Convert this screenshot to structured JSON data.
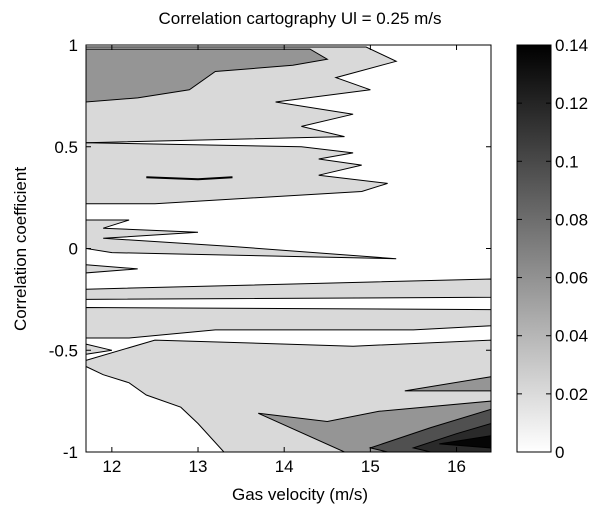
{
  "chart_data": {
    "type": "heatmap",
    "subtype": "filled-contour",
    "title": "Correlation cartography Ul = 0.25 m/s",
    "xlabel": "Gas velocity (m/s)",
    "ylabel": "Correlation coefficient",
    "xlim": [
      11.7,
      16.4
    ],
    "ylim": [
      -1,
      1
    ],
    "x_ticks": [
      "12",
      "13",
      "14",
      "15",
      "16"
    ],
    "y_ticks": [
      "1",
      "0.5",
      "0",
      "-0.5",
      "-1"
    ],
    "colorbar": {
      "ticks": [
        "0.14",
        "0.12",
        "0.1",
        "0.08",
        "0.06",
        "0.04",
        "0.02",
        "0"
      ],
      "range": [
        0,
        0.14
      ],
      "colormap": "gray-reversed"
    },
    "contour_levels": [
      0,
      0.02,
      0.04,
      0.06,
      0.08,
      0.1,
      0.12,
      0.14
    ],
    "regions": [
      {
        "level": 0.02,
        "color": "#d9d9d9",
        "polygon": [
          [
            11.7,
            0.99
          ],
          [
            14.95,
            0.99
          ],
          [
            15.3,
            0.92
          ],
          [
            14.6,
            0.84
          ],
          [
            15.0,
            0.78
          ],
          [
            13.9,
            0.72
          ],
          [
            14.8,
            0.66
          ],
          [
            14.2,
            0.6
          ],
          [
            14.7,
            0.55
          ],
          [
            11.7,
            0.52
          ]
        ]
      },
      {
        "level": 0.02,
        "color": "#d9d9d9",
        "polygon": [
          [
            11.7,
            0.52
          ],
          [
            14.2,
            0.5
          ],
          [
            14.8,
            0.47
          ],
          [
            14.4,
            0.44
          ],
          [
            14.9,
            0.41
          ],
          [
            14.4,
            0.36
          ],
          [
            15.2,
            0.32
          ],
          [
            14.9,
            0.28
          ],
          [
            12.5,
            0.22
          ],
          [
            11.7,
            0.22
          ]
        ]
      },
      {
        "level": 0.02,
        "color": "#d9d9d9",
        "polygon": [
          [
            11.7,
            0.14
          ],
          [
            12.2,
            0.14
          ],
          [
            11.9,
            0.1
          ],
          [
            13.0,
            0.08
          ],
          [
            11.9,
            0.05
          ],
          [
            13.4,
            0.01
          ],
          [
            15.3,
            -0.05
          ],
          [
            12.0,
            -0.02
          ],
          [
            11.7,
            0.0
          ]
        ]
      },
      {
        "level": 0.02,
        "color": "#d9d9d9",
        "polygon": [
          [
            11.7,
            -0.08
          ],
          [
            12.3,
            -0.1
          ],
          [
            11.7,
            -0.12
          ]
        ]
      },
      {
        "level": 0.02,
        "color": "#d9d9d9",
        "polygon": [
          [
            11.7,
            -0.2
          ],
          [
            16.4,
            -0.15
          ],
          [
            16.4,
            -0.24
          ],
          [
            11.7,
            -0.25
          ]
        ]
      },
      {
        "level": 0.02,
        "color": "#d9d9d9",
        "polygon": [
          [
            11.7,
            -0.29
          ],
          [
            16.4,
            -0.3
          ],
          [
            16.4,
            -0.38
          ],
          [
            15.5,
            -0.4
          ],
          [
            13.2,
            -0.4
          ],
          [
            12.2,
            -0.44
          ],
          [
            11.7,
            -0.44
          ]
        ]
      },
      {
        "level": 0.02,
        "color": "#d9d9d9",
        "polygon": [
          [
            11.7,
            -0.55
          ],
          [
            12.5,
            -0.45
          ],
          [
            14.8,
            -0.48
          ],
          [
            16.4,
            -0.45
          ],
          [
            16.4,
            -1.0
          ],
          [
            13.3,
            -1.0
          ],
          [
            13.0,
            -0.86
          ],
          [
            12.8,
            -0.78
          ],
          [
            12.4,
            -0.72
          ],
          [
            12.2,
            -0.66
          ],
          [
            11.9,
            -0.62
          ],
          [
            11.7,
            -0.58
          ]
        ]
      },
      {
        "level": 0.02,
        "color": "#d9d9d9",
        "polygon": [
          [
            11.7,
            -0.47
          ],
          [
            12.0,
            -0.5
          ],
          [
            11.7,
            -0.52
          ]
        ]
      },
      {
        "level": 0.04,
        "color": "#959595",
        "polygon": [
          [
            11.7,
            0.98
          ],
          [
            14.3,
            0.98
          ],
          [
            14.5,
            0.93
          ],
          [
            14.1,
            0.9
          ],
          [
            13.2,
            0.87
          ],
          [
            12.9,
            0.78
          ],
          [
            12.3,
            0.74
          ],
          [
            11.7,
            0.72
          ]
        ]
      },
      {
        "level": 0.04,
        "color": "#959595",
        "polygon": [
          [
            13.7,
            -0.81
          ],
          [
            14.5,
            -0.85
          ],
          [
            15.1,
            -0.8
          ],
          [
            16.4,
            -0.75
          ],
          [
            16.4,
            -1.0
          ],
          [
            14.7,
            -1.0
          ]
        ]
      },
      {
        "level": 0.04,
        "color": "#959595",
        "polygon": [
          [
            15.4,
            -0.7
          ],
          [
            16.4,
            -0.63
          ],
          [
            16.4,
            -0.7
          ]
        ]
      },
      {
        "level": 0.08,
        "color": "#505050",
        "polygon": [
          [
            15.0,
            -0.98
          ],
          [
            15.7,
            -0.88
          ],
          [
            16.4,
            -0.79
          ],
          [
            16.4,
            -1.0
          ],
          [
            15.2,
            -1.0
          ]
        ]
      },
      {
        "level": 0.1,
        "color": "#2a2a2a",
        "polygon": [
          [
            15.5,
            -0.98
          ],
          [
            16.0,
            -0.91
          ],
          [
            16.4,
            -0.86
          ],
          [
            16.4,
            -1.0
          ],
          [
            15.7,
            -1.0
          ]
        ]
      },
      {
        "level": 0.14,
        "color": "#050505",
        "polygon": [
          [
            15.8,
            -0.96
          ],
          [
            16.4,
            -0.92
          ],
          [
            16.4,
            -0.98
          ]
        ]
      }
    ],
    "contour_lines": [
      {
        "color": "#000000",
        "points": [
          [
            12.4,
            0.35
          ],
          [
            13.0,
            0.34
          ],
          [
            13.4,
            0.35
          ]
        ]
      }
    ]
  }
}
